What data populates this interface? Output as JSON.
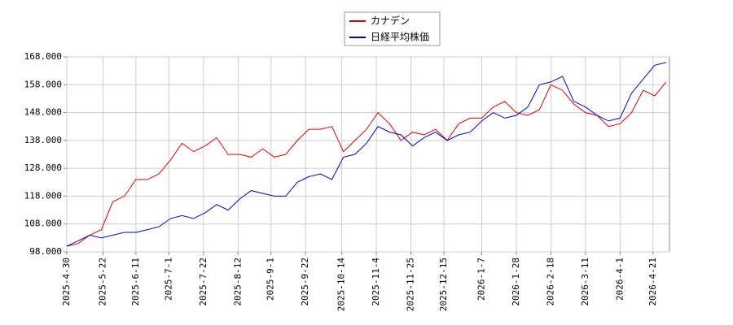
{
  "chart_data": {
    "type": "line",
    "x": [
      "2025-04-30",
      "2025-05-07",
      "2025-05-14",
      "2025-05-21",
      "2025-05-28",
      "2025-06-04",
      "2025-06-11",
      "2025-06-18",
      "2025-06-25",
      "2025-07-02",
      "2025-07-09",
      "2025-07-16",
      "2025-07-23",
      "2025-07-30",
      "2025-08-06",
      "2025-08-13",
      "2025-08-20",
      "2025-08-27",
      "2025-09-03",
      "2025-09-10",
      "2025-09-17",
      "2025-09-24",
      "2025-10-01",
      "2025-10-08",
      "2025-10-15",
      "2025-10-22",
      "2025-10-29",
      "2025-11-05",
      "2025-11-12",
      "2025-11-19",
      "2025-11-26",
      "2025-12-03",
      "2025-12-10",
      "2025-12-17",
      "2025-12-24",
      "2025-12-31",
      "2026-01-07",
      "2026-01-14",
      "2026-01-21",
      "2026-01-28",
      "2026-02-04",
      "2026-02-11",
      "2026-02-18",
      "2026-02-25",
      "2026-03-04",
      "2026-03-11",
      "2026-03-18",
      "2026-03-25",
      "2026-04-01",
      "2026-04-08",
      "2026-04-15",
      "2026-04-22",
      "2026-04-29"
    ],
    "series": [
      {
        "name": "カナデン",
        "color": "#dd0000",
        "values": [
          100,
          101,
          104,
          106,
          116,
          118,
          124,
          124,
          126,
          131,
          137,
          134,
          136,
          139,
          133,
          133,
          132,
          135,
          132,
          133,
          138,
          142,
          142,
          143,
          134,
          138,
          142,
          148,
          144,
          138,
          141,
          140,
          142,
          138,
          144,
          146,
          146,
          150,
          152,
          148,
          147,
          149,
          158,
          156,
          151,
          148,
          147,
          143,
          144,
          148,
          156,
          154,
          159
        ]
      },
      {
        "name": "日経平均株価",
        "color": "#0000cc",
        "values": [
          100,
          102,
          104,
          103,
          104,
          105,
          105,
          106,
          107,
          110,
          111,
          110,
          112,
          115,
          113,
          117,
          120,
          119,
          118,
          118,
          123,
          125,
          126,
          124,
          132,
          133,
          137,
          143,
          141,
          140,
          136,
          139,
          141,
          138,
          140,
          141,
          145,
          148,
          146,
          147,
          150,
          158,
          159,
          161,
          152,
          150,
          147,
          145,
          146,
          155,
          160,
          165,
          166
        ]
      }
    ],
    "xlim": [
      "2025-04-30",
      "2026-05-01"
    ],
    "xticks": [
      {
        "value": "2025-04-30",
        "label": "2025-4-30"
      },
      {
        "value": "2025-05-22",
        "label": "2025-5-22"
      },
      {
        "value": "2025-06-11",
        "label": "2025-6-11"
      },
      {
        "value": "2025-07-01",
        "label": "2025-7-1"
      },
      {
        "value": "2025-07-22",
        "label": "2025-7-22"
      },
      {
        "value": "2025-08-12",
        "label": "2025-8-12"
      },
      {
        "value": "2025-09-01",
        "label": "2025-9-1"
      },
      {
        "value": "2025-09-22",
        "label": "2025-9-22"
      },
      {
        "value": "2025-10-14",
        "label": "2025-10-14"
      },
      {
        "value": "2025-11-04",
        "label": "2025-11-4"
      },
      {
        "value": "2025-11-25",
        "label": "2025-11-25"
      },
      {
        "value": "2025-12-15",
        "label": "2025-12-15"
      },
      {
        "value": "2026-01-07",
        "label": "2026-1-7"
      },
      {
        "value": "2026-01-28",
        "label": "2026-1-28"
      },
      {
        "value": "2026-02-18",
        "label": "2026-2-18"
      },
      {
        "value": "2026-03-11",
        "label": "2026-3-11"
      },
      {
        "value": "2026-04-01",
        "label": "2026-4-1"
      },
      {
        "value": "2026-04-21",
        "label": "2026-4-21"
      }
    ],
    "ylim": [
      98,
      168
    ],
    "yticks": [
      {
        "value": 98,
        "label": "98.000"
      },
      {
        "value": 108,
        "label": "108.000"
      },
      {
        "value": 118,
        "label": "118.000"
      },
      {
        "value": 128,
        "label": "128.000"
      },
      {
        "value": 138,
        "label": "138.000"
      },
      {
        "value": 148,
        "label": "148.000"
      },
      {
        "value": 158,
        "label": "158.000"
      },
      {
        "value": 168,
        "label": "168.000"
      }
    ],
    "grid": true
  }
}
